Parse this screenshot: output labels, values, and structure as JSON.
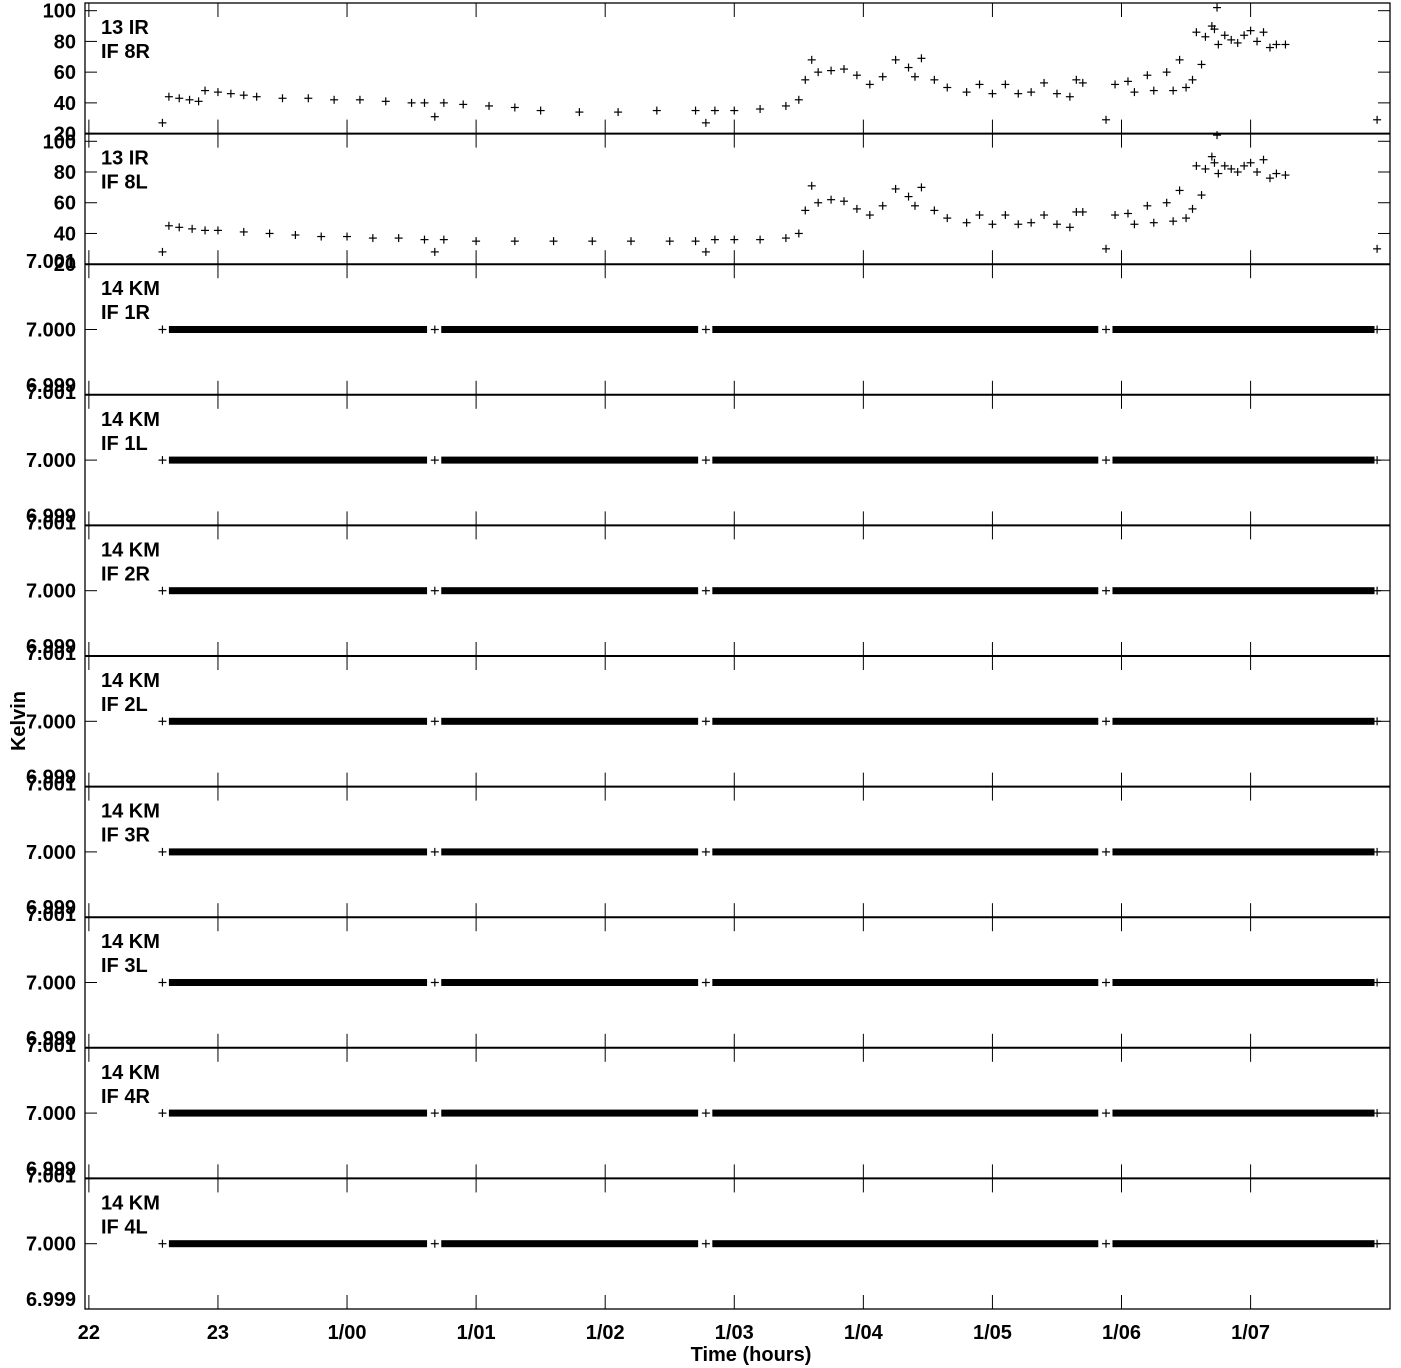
{
  "chart_data": {
    "type": "scatter",
    "marker": "+",
    "marker_color": "#000000",
    "xlabel": "Time (hours)",
    "ylabel": "Kelvin",
    "x_ticks": [
      "22",
      "23",
      "1/00",
      "1/01",
      "1/02",
      "1/03",
      "1/04",
      "1/05",
      "1/06",
      "1/07"
    ],
    "x_range_hours": [
      21.97,
      32.08
    ],
    "panels": [
      {
        "label1": "13 IR",
        "label2": "IF 8R",
        "ylim": [
          20,
          105
        ],
        "y_ticks": [
          "20",
          "40",
          "60",
          "80",
          "100"
        ],
        "points": [
          [
            22.57,
            27
          ],
          [
            22.62,
            44
          ],
          [
            22.7,
            43
          ],
          [
            22.78,
            42
          ],
          [
            22.85,
            41
          ],
          [
            22.9,
            48
          ],
          [
            23.0,
            47
          ],
          [
            23.1,
            46
          ],
          [
            23.2,
            45
          ],
          [
            23.3,
            44
          ],
          [
            23.5,
            43
          ],
          [
            23.7,
            43
          ],
          [
            23.9,
            42
          ],
          [
            24.1,
            42
          ],
          [
            24.3,
            41
          ],
          [
            24.5,
            40
          ],
          [
            24.6,
            40
          ],
          [
            24.68,
            31
          ],
          [
            24.75,
            40
          ],
          [
            24.9,
            39
          ],
          [
            25.1,
            38
          ],
          [
            25.3,
            37
          ],
          [
            25.5,
            35
          ],
          [
            25.8,
            34
          ],
          [
            26.1,
            34
          ],
          [
            26.4,
            35
          ],
          [
            26.7,
            35
          ],
          [
            26.78,
            27
          ],
          [
            26.85,
            35
          ],
          [
            27.0,
            35
          ],
          [
            27.2,
            36
          ],
          [
            27.4,
            38
          ],
          [
            27.5,
            42
          ],
          [
            27.55,
            55
          ],
          [
            27.6,
            68
          ],
          [
            27.65,
            60
          ],
          [
            27.75,
            61
          ],
          [
            27.85,
            62
          ],
          [
            27.95,
            58
          ],
          [
            28.05,
            52
          ],
          [
            28.15,
            57
          ],
          [
            28.25,
            68
          ],
          [
            28.35,
            63
          ],
          [
            28.4,
            57
          ],
          [
            28.45,
            69
          ],
          [
            28.55,
            55
          ],
          [
            28.65,
            50
          ],
          [
            28.8,
            47
          ],
          [
            28.9,
            52
          ],
          [
            29.0,
            46
          ],
          [
            29.1,
            52
          ],
          [
            29.2,
            46
          ],
          [
            29.3,
            47
          ],
          [
            29.4,
            53
          ],
          [
            29.5,
            46
          ],
          [
            29.6,
            44
          ],
          [
            29.65,
            55
          ],
          [
            29.7,
            53
          ],
          [
            29.88,
            29
          ],
          [
            29.95,
            52
          ],
          [
            30.05,
            54
          ],
          [
            30.1,
            47
          ],
          [
            30.2,
            58
          ],
          [
            30.25,
            48
          ],
          [
            30.35,
            60
          ],
          [
            30.4,
            48
          ],
          [
            30.45,
            68
          ],
          [
            30.5,
            50
          ],
          [
            30.55,
            55
          ],
          [
            30.58,
            86
          ],
          [
            30.62,
            65
          ],
          [
            30.65,
            83
          ],
          [
            30.7,
            90
          ],
          [
            30.72,
            88
          ],
          [
            30.74,
            102
          ],
          [
            30.75,
            78
          ],
          [
            30.8,
            84
          ],
          [
            30.85,
            81
          ],
          [
            30.9,
            79
          ],
          [
            30.95,
            84
          ],
          [
            31.0,
            87
          ],
          [
            31.05,
            80
          ],
          [
            31.1,
            86
          ],
          [
            31.15,
            76
          ],
          [
            31.2,
            78
          ],
          [
            31.27,
            78
          ],
          [
            31.98,
            29
          ]
        ]
      },
      {
        "label1": "13 IR",
        "label2": "IF 8L",
        "ylim": [
          20,
          105
        ],
        "y_ticks": [
          "20",
          "40",
          "60",
          "80",
          "100"
        ],
        "points": [
          [
            22.57,
            28
          ],
          [
            22.62,
            45
          ],
          [
            22.7,
            44
          ],
          [
            22.8,
            43
          ],
          [
            22.9,
            42
          ],
          [
            23.0,
            42
          ],
          [
            23.2,
            41
          ],
          [
            23.4,
            40
          ],
          [
            23.6,
            39
          ],
          [
            23.8,
            38
          ],
          [
            24.0,
            38
          ],
          [
            24.2,
            37
          ],
          [
            24.4,
            37
          ],
          [
            24.6,
            36
          ],
          [
            24.68,
            28
          ],
          [
            24.75,
            36
          ],
          [
            25.0,
            35
          ],
          [
            25.3,
            35
          ],
          [
            25.6,
            35
          ],
          [
            25.9,
            35
          ],
          [
            26.2,
            35
          ],
          [
            26.5,
            35
          ],
          [
            26.7,
            35
          ],
          [
            26.78,
            28
          ],
          [
            26.85,
            36
          ],
          [
            27.0,
            36
          ],
          [
            27.2,
            36
          ],
          [
            27.4,
            37
          ],
          [
            27.5,
            40
          ],
          [
            27.55,
            55
          ],
          [
            27.6,
            71
          ],
          [
            27.65,
            60
          ],
          [
            27.75,
            62
          ],
          [
            27.85,
            61
          ],
          [
            27.95,
            56
          ],
          [
            28.05,
            52
          ],
          [
            28.15,
            58
          ],
          [
            28.25,
            69
          ],
          [
            28.35,
            64
          ],
          [
            28.4,
            58
          ],
          [
            28.45,
            70
          ],
          [
            28.55,
            55
          ],
          [
            28.65,
            50
          ],
          [
            28.8,
            47
          ],
          [
            28.9,
            52
          ],
          [
            29.0,
            46
          ],
          [
            29.1,
            52
          ],
          [
            29.2,
            46
          ],
          [
            29.3,
            47
          ],
          [
            29.4,
            52
          ],
          [
            29.5,
            46
          ],
          [
            29.6,
            44
          ],
          [
            29.65,
            54
          ],
          [
            29.7,
            54
          ],
          [
            29.88,
            30
          ],
          [
            29.95,
            52
          ],
          [
            30.05,
            53
          ],
          [
            30.1,
            46
          ],
          [
            30.2,
            58
          ],
          [
            30.25,
            47
          ],
          [
            30.35,
            60
          ],
          [
            30.4,
            48
          ],
          [
            30.45,
            68
          ],
          [
            30.5,
            50
          ],
          [
            30.55,
            56
          ],
          [
            30.58,
            84
          ],
          [
            30.62,
            65
          ],
          [
            30.65,
            82
          ],
          [
            30.7,
            90
          ],
          [
            30.72,
            86
          ],
          [
            30.74,
            104
          ],
          [
            30.75,
            79
          ],
          [
            30.8,
            84
          ],
          [
            30.85,
            82
          ],
          [
            30.9,
            80
          ],
          [
            30.95,
            84
          ],
          [
            31.0,
            86
          ],
          [
            31.05,
            80
          ],
          [
            31.1,
            88
          ],
          [
            31.15,
            76
          ],
          [
            31.2,
            79
          ],
          [
            31.27,
            78
          ],
          [
            31.98,
            30
          ]
        ]
      },
      {
        "label1": "14 KM",
        "label2": "IF 1R",
        "ylim": [
          6.999,
          7.001
        ],
        "y_ticks": [
          "7.001",
          "7.000",
          "6.999"
        ],
        "value": 7.0
      },
      {
        "label1": "14 KM",
        "label2": "IF 1L",
        "ylim": [
          6.999,
          7.001
        ],
        "y_ticks": [
          "7.001",
          "7.000",
          "6.999"
        ],
        "value": 7.0
      },
      {
        "label1": "14 KM",
        "label2": "IF 2R",
        "ylim": [
          6.999,
          7.001
        ],
        "y_ticks": [
          "7.001",
          "7.000",
          "6.999"
        ],
        "value": 7.0
      },
      {
        "label1": "14 KM",
        "label2": "IF 2L",
        "ylim": [
          6.999,
          7.001
        ],
        "y_ticks": [
          "7.001",
          "7.000",
          "6.999"
        ],
        "value": 7.0
      },
      {
        "label1": "14 KM",
        "label2": "IF 3R",
        "ylim": [
          6.999,
          7.001
        ],
        "y_ticks": [
          "7.001",
          "7.000",
          "6.999"
        ],
        "value": 7.0
      },
      {
        "label1": "14 KM",
        "label2": "IF 3L",
        "ylim": [
          6.999,
          7.001
        ],
        "y_ticks": [
          "7.001",
          "7.000",
          "6.999"
        ],
        "value": 7.0
      },
      {
        "label1": "14 KM",
        "label2": "IF 4R",
        "ylim": [
          6.999,
          7.001
        ],
        "y_ticks": [
          "7.001",
          "7.000",
          "6.999"
        ],
        "value": 7.0
      },
      {
        "label1": "14 KM",
        "label2": "IF 4L",
        "ylim": [
          6.999,
          7.001
        ],
        "y_ticks": [
          "7.001",
          "7.000",
          "6.999"
        ],
        "value": 7.0
      }
    ],
    "flat_segments_hours": [
      [
        22.62,
        24.62
      ],
      [
        24.73,
        26.72
      ],
      [
        26.83,
        29.82
      ],
      [
        29.93,
        31.96
      ]
    ],
    "flat_isolated_hours": [
      22.57,
      24.68,
      26.78,
      29.88,
      31.98
    ]
  }
}
